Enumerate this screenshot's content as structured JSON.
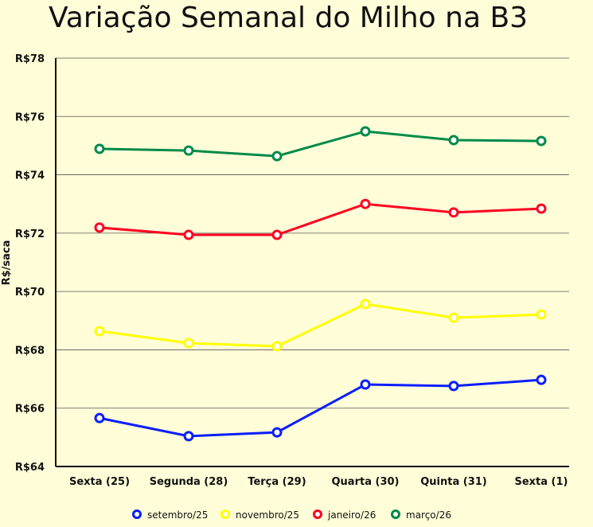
{
  "chart_data": {
    "type": "line",
    "title": "Variação Semanal do Milho na B3",
    "xlabel": "",
    "ylabel": "R$/saca",
    "categories": [
      "Sexta (25)",
      "Segunda (28)",
      "Terça (29)",
      "Quarta (30)",
      "Quinta (31)",
      "Sexta (1)"
    ],
    "ylim": [
      64,
      78
    ],
    "yticks": [
      64,
      66,
      68,
      70,
      72,
      74,
      76,
      78
    ],
    "ytick_labels": [
      "R$64",
      "R$66",
      "R$68",
      "R$70",
      "R$72",
      "R$74",
      "R$76",
      "R$78"
    ],
    "grid": true,
    "legend_position": "bottom",
    "series": [
      {
        "name": "setembro/25",
        "color": "#0a1eff",
        "values": [
          65.66,
          65.04,
          65.17,
          66.81,
          66.76,
          66.97
        ]
      },
      {
        "name": "novembro/25",
        "color": "#ffff00",
        "values": [
          68.64,
          68.23,
          68.12,
          69.57,
          69.1,
          69.21
        ]
      },
      {
        "name": "janeiro/26",
        "color": "#ff0022",
        "values": [
          72.19,
          71.94,
          71.94,
          73.0,
          72.71,
          72.84
        ]
      },
      {
        "name": "março/26",
        "color": "#008a4a",
        "values": [
          74.89,
          74.83,
          74.64,
          75.49,
          75.19,
          75.16
        ]
      }
    ]
  }
}
